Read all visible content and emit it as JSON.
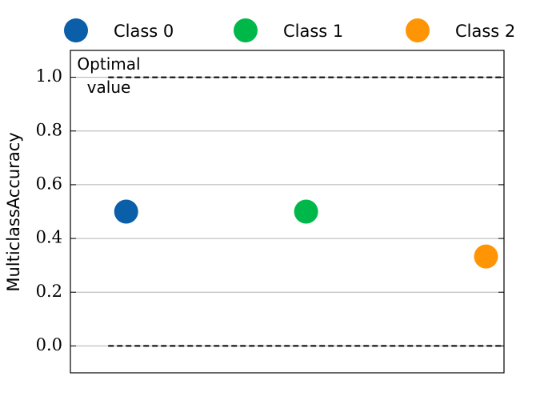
{
  "chart_data": {
    "type": "scatter",
    "ylabel": "MulticlassAccuracy",
    "annotation": "Optimal\nvalue",
    "series": [
      {
        "name": "Class 0",
        "color": "#0b5ea8",
        "x": [
          0
        ],
        "values": [
          0.5
        ]
      },
      {
        "name": "Class 1",
        "color": "#00b84a",
        "x": [
          1
        ],
        "values": [
          0.5
        ]
      },
      {
        "name": "Class 2",
        "color": "#ff9505",
        "x": [
          2
        ],
        "values": [
          0.333
        ]
      }
    ],
    "hlines": [
      {
        "y": 1,
        "xmin": -0.1,
        "xmax": 2.1
      },
      {
        "y": 0,
        "xmin": -0.1,
        "xmax": 2.1
      }
    ],
    "xlim": [
      -0.31,
      2.1
    ],
    "ylim": [
      -0.1,
      1.1
    ],
    "yticks": [
      {
        "value": 0,
        "label": "0.0"
      },
      0.2,
      0.4,
      0.6,
      0.8,
      {
        "value": 1,
        "label": "1.0"
      }
    ],
    "grid": true,
    "legend": "top"
  }
}
